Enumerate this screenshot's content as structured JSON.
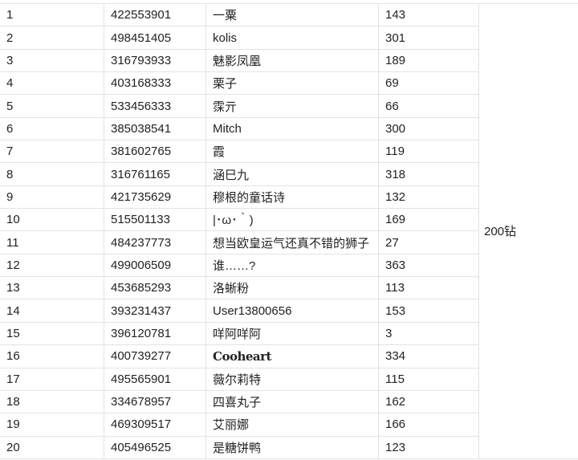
{
  "reward": "200钻",
  "rows": [
    {
      "rank": "1",
      "id": "422553901",
      "name": "一粟",
      "score": "143"
    },
    {
      "rank": "2",
      "id": "498451405",
      "name": "kolis",
      "score": "301"
    },
    {
      "rank": "3",
      "id": "316793933",
      "name": "魅影凤凰",
      "score": "189"
    },
    {
      "rank": "4",
      "id": "403168333",
      "name": "栗子",
      "score": "69"
    },
    {
      "rank": "5",
      "id": "533456333",
      "name": "霂亓",
      "score": "66"
    },
    {
      "rank": "6",
      "id": "385038541",
      "name": "Mitch",
      "score": "300"
    },
    {
      "rank": "7",
      "id": "381602765",
      "name": "霞",
      "score": "119"
    },
    {
      "rank": "8",
      "id": "316761165",
      "name": "涵巳九",
      "score": "318"
    },
    {
      "rank": "9",
      "id": "421735629",
      "name": "穆根的童话诗",
      "score": "132"
    },
    {
      "rank": "10",
      "id": "515501133",
      "name": "|･ω･｀)",
      "score": "169"
    },
    {
      "rank": "11",
      "id": "484237773",
      "name": "想当欧皇运气还真不错的狮子",
      "score": "27"
    },
    {
      "rank": "12",
      "id": "499006509",
      "name": "谁……?",
      "score": "363"
    },
    {
      "rank": "13",
      "id": "453685293",
      "name": "洛蜥粉",
      "score": "113"
    },
    {
      "rank": "14",
      "id": "393231437",
      "name": "User13800656",
      "score": "153"
    },
    {
      "rank": "15",
      "id": "396120781",
      "name": "咩阿咩阿",
      "score": "3"
    },
    {
      "rank": "16",
      "id": "400739277",
      "name": "Cooheart",
      "score": "334"
    },
    {
      "rank": "17",
      "id": "495565901",
      "name": "薇尔莉特",
      "score": "115"
    },
    {
      "rank": "18",
      "id": "334678957",
      "name": "四喜丸子",
      "score": "162"
    },
    {
      "rank": "19",
      "id": "469309517",
      "name": "艾丽娜",
      "score": "166"
    },
    {
      "rank": "20",
      "id": "405496525",
      "name": "是糖饼鸭",
      "score": "123"
    }
  ]
}
